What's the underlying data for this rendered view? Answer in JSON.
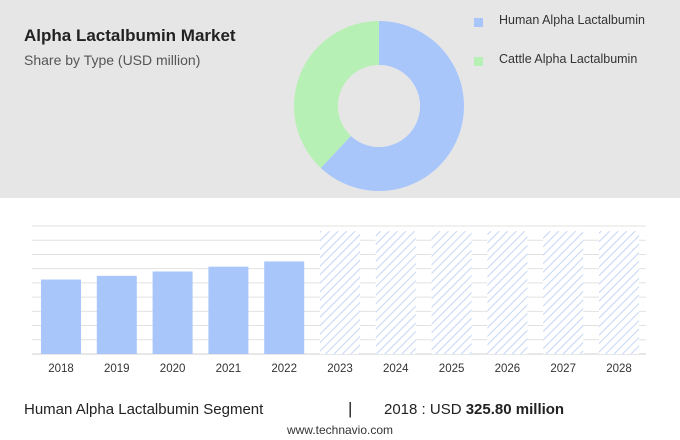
{
  "header": {
    "title": "Alpha Lactalbumin Market",
    "subtitle": "Share by Type (USD million)"
  },
  "colors": {
    "human": "#a9c6fb",
    "cattle": "#b6f0b4",
    "forecast_hatch": "#c4d6f5"
  },
  "chart_data": [
    {
      "type": "pie",
      "style": "donut",
      "title": "",
      "series": [
        {
          "name": "Human Alpha Lactalbumin",
          "value": 62,
          "color": "#a9c6fb"
        },
        {
          "name": "Cattle Alpha Lactalbumin",
          "value": 38,
          "color": "#b6f0b4"
        }
      ],
      "legend_placement": "right"
    },
    {
      "type": "bar",
      "title": "",
      "categories": [
        "2018",
        "2019",
        "2020",
        "2021",
        "2022",
        "2023",
        "2024",
        "2025",
        "2026",
        "2027",
        "2028"
      ],
      "values": [
        325.8,
        342,
        361,
        382,
        405,
        null,
        null,
        null,
        null,
        null,
        null
      ],
      "forecast_start_index": 5,
      "ylim": [
        0,
        560
      ],
      "grid": true,
      "xlabel": "",
      "ylabel": ""
    }
  ],
  "footer": {
    "segment": "Human Alpha Lactalbumin Segment",
    "separator": "|",
    "value_prefix": "2018 : USD",
    "value_bold": "325.80 million"
  },
  "source": "www.technavio.com"
}
